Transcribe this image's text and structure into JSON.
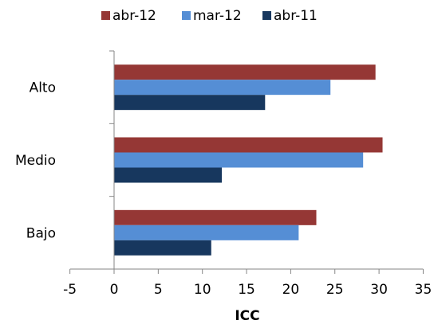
{
  "chart_data": {
    "type": "bar",
    "orientation": "horizontal",
    "categories": [
      "Alto",
      "Medio",
      "Bajo"
    ],
    "series": [
      {
        "name": "abr-12",
        "color": "#953735",
        "values": [
          29.6,
          30.4,
          22.9
        ]
      },
      {
        "name": "mar-12",
        "color": "#558ED5",
        "values": [
          24.5,
          28.2,
          20.9
        ]
      },
      {
        "name": "abr-11",
        "color": "#17375E",
        "values": [
          17.1,
          12.2,
          11.0
        ]
      }
    ],
    "xlabel": "ICC",
    "ylabel": "",
    "xlim": [
      -5,
      35
    ],
    "xticks": [
      "-5",
      "0",
      "5",
      "10",
      "15",
      "20",
      "25",
      "30",
      "35"
    ],
    "grid": false,
    "legend": "top"
  }
}
